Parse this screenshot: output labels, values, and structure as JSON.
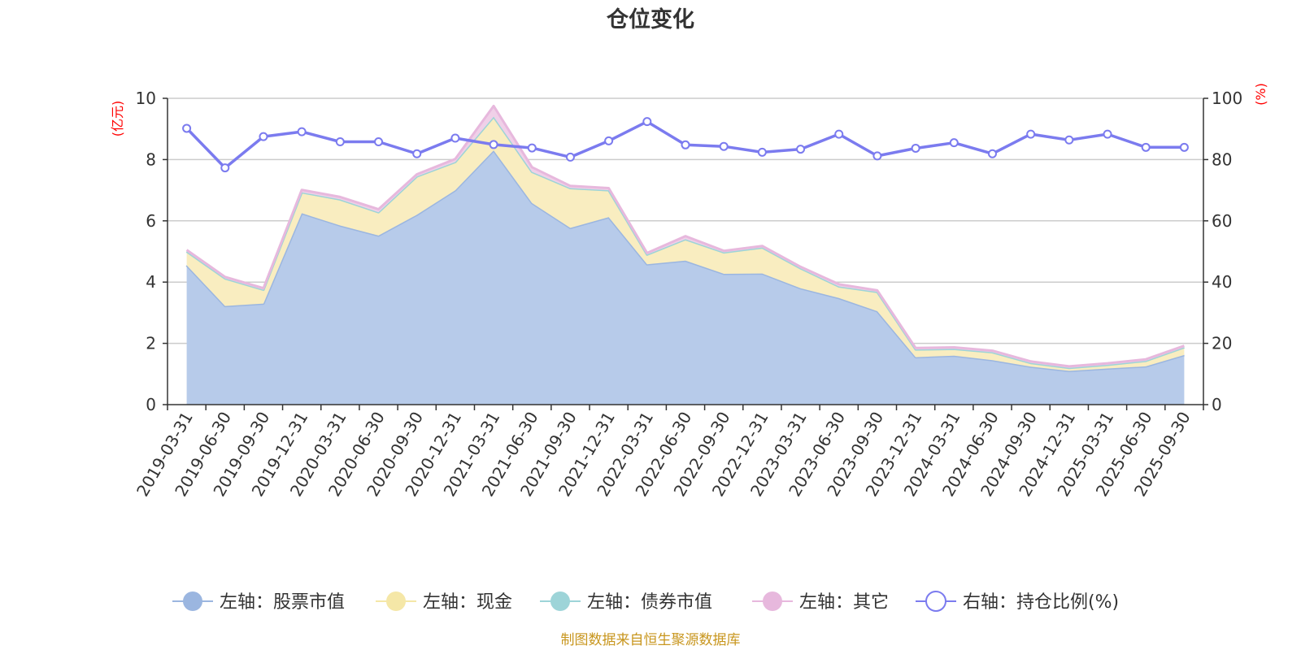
{
  "chart_data": {
    "type": "area",
    "title": "仓位变化",
    "left_unit": "(亿元)",
    "right_unit": "(%)",
    "source_note": "制图数据来自恒生聚源数据库",
    "left_ylim": [
      0,
      10
    ],
    "left_ticks": [
      "0",
      "2",
      "4",
      "6",
      "8",
      "10"
    ],
    "right_ylim": [
      0,
      100
    ],
    "right_ticks": [
      "0",
      "20",
      "40",
      "60",
      "80",
      "100"
    ],
    "categories": [
      "2019-03-31",
      "2019-06-30",
      "2019-09-30",
      "2019-12-31",
      "2020-03-31",
      "2020-06-30",
      "2020-09-30",
      "2020-12-31",
      "2021-03-31",
      "2021-06-30",
      "2021-09-30",
      "2021-12-31",
      "2022-03-31",
      "2022-06-30",
      "2022-09-30",
      "2022-12-31",
      "2023-03-31",
      "2023-06-30",
      "2023-09-30",
      "2023-12-31",
      "2024-03-31",
      "2024-06-30",
      "2024-09-30",
      "2024-12-31",
      "2025-03-31",
      "2025-06-30",
      "2025-09-30"
    ],
    "series": [
      {
        "name": "左轴：股票市值",
        "axis": "left",
        "color": "#9bb6e0",
        "fill": "#b7cbea",
        "values": [
          4.55,
          3.22,
          3.3,
          6.25,
          5.85,
          5.52,
          6.2,
          7.0,
          8.3,
          6.58,
          5.77,
          6.12,
          4.58,
          4.7,
          4.27,
          4.28,
          3.8,
          3.48,
          3.05,
          1.55,
          1.6,
          1.45,
          1.24,
          1.1,
          1.18,
          1.25,
          1.62
        ]
      },
      {
        "name": "左轴：现金",
        "axis": "left",
        "color": "#f5e7a7",
        "fill": "#f9edc0",
        "values": [
          0.45,
          0.9,
          0.45,
          0.68,
          0.85,
          0.76,
          1.25,
          0.92,
          1.1,
          1.02,
          1.3,
          0.88,
          0.32,
          0.7,
          0.7,
          0.85,
          0.65,
          0.38,
          0.63,
          0.25,
          0.22,
          0.26,
          0.12,
          0.1,
          0.12,
          0.18,
          0.25
        ]
      },
      {
        "name": "左轴：债券市值",
        "axis": "left",
        "color": "#9dd4d8",
        "fill": "#c2e6e8",
        "values": [
          0,
          0,
          0,
          0,
          0,
          0,
          0,
          0,
          0,
          0,
          0,
          0,
          0,
          0,
          0,
          0,
          0,
          0,
          0,
          0,
          0,
          0,
          0,
          0,
          0,
          0,
          0
        ]
      },
      {
        "name": "左轴：其它",
        "axis": "left",
        "color": "#e7b8dd",
        "fill": "#f0d0e8",
        "values": [
          0.05,
          0.05,
          0.05,
          0.08,
          0.08,
          0.1,
          0.07,
          0.1,
          0.35,
          0.15,
          0.07,
          0.07,
          0.05,
          0.1,
          0.05,
          0.05,
          0.05,
          0.07,
          0.05,
          0.05,
          0.05,
          0.05,
          0.05,
          0.05,
          0.05,
          0.05,
          0.05
        ]
      },
      {
        "name": "右轴：持仓比例(%)",
        "axis": "right",
        "color": "#7b7bef",
        "values": [
          90.2,
          77.3,
          87.5,
          89.1,
          85.8,
          85.8,
          81.9,
          87.0,
          84.9,
          83.8,
          80.8,
          86.1,
          92.4,
          84.8,
          84.3,
          82.4,
          83.4,
          88.3,
          81.2,
          83.7,
          85.5,
          81.9,
          88.3,
          86.4,
          88.3,
          84.0,
          84.0
        ]
      }
    ]
  }
}
